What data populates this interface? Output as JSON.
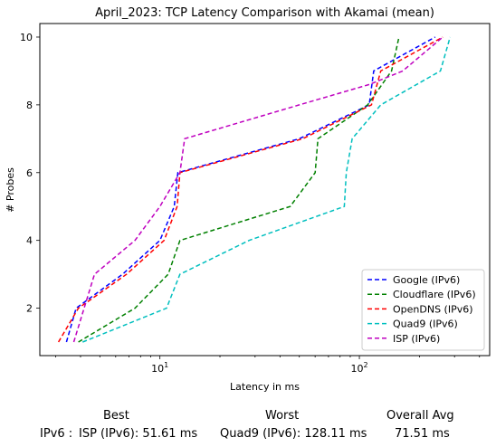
{
  "chart_data": {
    "type": "line",
    "title": "April_2023: TCP Latency Comparison with Akamai (mean)",
    "xlabel": "Latency in ms",
    "ylabel": "# Probes",
    "xscale": "log",
    "xlim": [
      2.5,
      450
    ],
    "ylim": [
      0.6,
      10.4
    ],
    "xticks": [
      {
        "value": 10,
        "base": "10",
        "exp": "1"
      },
      {
        "value": 100,
        "base": "10",
        "exp": "2"
      }
    ],
    "yticks": [
      2,
      4,
      6,
      8,
      10
    ],
    "grid": false,
    "legend": "bottom-right",
    "series": [
      {
        "name": "Google (IPv6)",
        "color": "#0000ff",
        "points": [
          [
            3.4,
            1
          ],
          [
            3.8,
            2
          ],
          [
            6.5,
            3
          ],
          [
            10,
            4
          ],
          [
            11.8,
            5
          ],
          [
            12.3,
            6
          ],
          [
            50,
            7
          ],
          [
            112,
            8
          ],
          [
            118,
            9
          ],
          [
            240,
            10
          ]
        ]
      },
      {
        "name": "Cloudflare (IPv6)",
        "color": "#008000",
        "points": [
          [
            3.9,
            1
          ],
          [
            7.5,
            2
          ],
          [
            11,
            3
          ],
          [
            12.6,
            4
          ],
          [
            45,
            5
          ],
          [
            60,
            6
          ],
          [
            62,
            7
          ],
          [
            110,
            8
          ],
          [
            145,
            9
          ],
          [
            158,
            10
          ]
        ]
      },
      {
        "name": "OpenDNS (IPv6)",
        "color": "#ff0000",
        "points": [
          [
            3.1,
            1
          ],
          [
            3.9,
            2
          ],
          [
            6.8,
            3
          ],
          [
            10.5,
            4
          ],
          [
            12.2,
            5
          ],
          [
            12.6,
            6
          ],
          [
            52,
            7
          ],
          [
            115,
            8
          ],
          [
            128,
            9
          ],
          [
            262,
            10
          ]
        ]
      },
      {
        "name": "Quad9 (IPv6)",
        "color": "#00bfbf",
        "points": [
          [
            4.1,
            1
          ],
          [
            10.8,
            2
          ],
          [
            12.6,
            3
          ],
          [
            28,
            4
          ],
          [
            84,
            5
          ],
          [
            86,
            6
          ],
          [
            92,
            7
          ],
          [
            128,
            8
          ],
          [
            255,
            9
          ],
          [
            285,
            10
          ]
        ]
      },
      {
        "name": "ISP (IPv6)",
        "color": "#bf00bf",
        "points": [
          [
            3.7,
            1
          ],
          [
            4.7,
            3
          ],
          [
            7.5,
            4
          ],
          [
            10,
            5
          ],
          [
            12.6,
            6
          ],
          [
            13.3,
            7
          ],
          [
            50,
            8
          ],
          [
            112,
            8.6
          ],
          [
            165,
            9
          ],
          [
            262,
            10
          ]
        ]
      }
    ]
  },
  "summary": {
    "best_header": "Best",
    "worst_header": "Worst",
    "avg_header": "Overall Avg",
    "row_label": "IPv6 :",
    "best_value": "ISP (IPv6): 51.61 ms",
    "worst_value": "Quad9 (IPv6): 128.11 ms",
    "avg_value": "71.51 ms"
  }
}
